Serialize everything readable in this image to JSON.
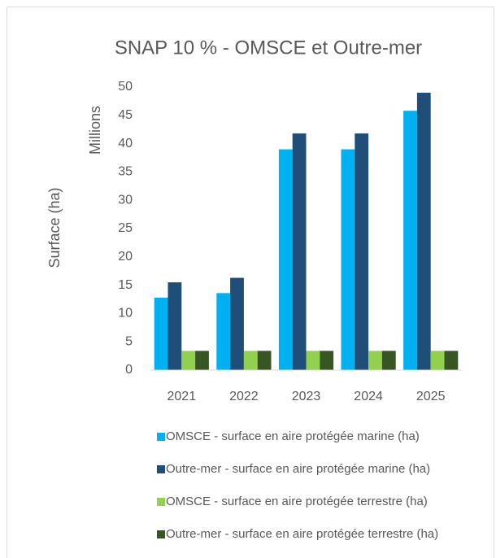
{
  "chart_data": {
    "type": "bar",
    "title": "SNAP 10 % - OMSCE et Outre-mer",
    "y_axis_label": "Surface (ha)",
    "y_axis_unit_label": "Millions",
    "categories": [
      "2021",
      "2022",
      "2023",
      "2024",
      "2025"
    ],
    "series": [
      {
        "name": "OMSCE - surface en aire protégée marine (ha)",
        "color": "#00b0f0",
        "values": [
          12.8,
          13.6,
          39,
          39,
          45.8
        ]
      },
      {
        "name": "Outre-mer - surface en aire protégée marine (ha)",
        "color": "#1f4e79",
        "values": [
          15.5,
          16.3,
          41.8,
          41.8,
          49
        ]
      },
      {
        "name": "OMSCE - surface en aire protégée terrestre (ha)",
        "color": "#92d050",
        "values": [
          3.4,
          3.4,
          3.4,
          3.4,
          3.4
        ]
      },
      {
        "name": "Outre-mer - surface en aire protégée terrestre (ha)",
        "color": "#375623",
        "values": [
          3.4,
          3.4,
          3.4,
          3.4,
          3.4
        ]
      }
    ],
    "ylim": [
      0,
      50
    ],
    "yticks": [
      0,
      5,
      10,
      15,
      20,
      25,
      30,
      35,
      40,
      45,
      50
    ],
    "grid": false,
    "legend_position": "bottom"
  }
}
